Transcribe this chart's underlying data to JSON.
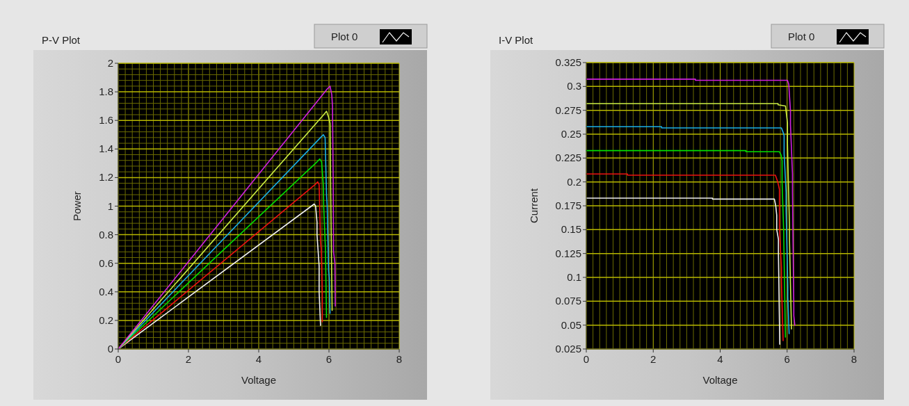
{
  "chart_data": [
    {
      "type": "line",
      "title": "P-V Plot",
      "xlabel": "Voltage",
      "ylabel": "Power",
      "xlim": [
        0,
        8
      ],
      "ylim": [
        0,
        2
      ],
      "grid": true,
      "legend": "top right",
      "line_style": "solid",
      "marker": "none",
      "xticks": [
        0,
        {
          "value": 0.2,
          "label": null
        },
        {
          "value": 0.4,
          "label": null
        },
        {
          "value": 0.6,
          "label": null
        },
        {
          "value": 0.8,
          "label": null
        },
        {
          "value": 1,
          "label": null
        },
        {
          "value": 1.2,
          "label": null
        },
        {
          "value": 1.4,
          "label": null
        },
        {
          "value": 1.6,
          "label": null
        },
        {
          "value": 1.8,
          "label": null
        },
        2,
        {
          "value": 2.2,
          "label": null
        },
        {
          "value": 2.4,
          "label": null
        },
        {
          "value": 2.6,
          "label": null
        },
        {
          "value": 2.8,
          "label": null
        },
        {
          "value": 3,
          "label": null
        },
        {
          "value": 3.2,
          "label": null
        },
        {
          "value": 3.4,
          "label": null
        },
        {
          "value": 3.6,
          "label": null
        },
        {
          "value": 3.8,
          "label": null
        },
        4,
        {
          "value": 4.2,
          "label": null
        },
        {
          "value": 4.4,
          "label": null
        },
        {
          "value": 4.6,
          "label": null
        },
        {
          "value": 4.8,
          "label": null
        },
        {
          "value": 5,
          "label": null
        },
        {
          "value": 5.2,
          "label": null
        },
        {
          "value": 5.4,
          "label": null
        },
        {
          "value": 5.6,
          "label": null
        },
        {
          "value": 5.8,
          "label": null
        },
        6,
        {
          "value": 6.2,
          "label": null
        },
        {
          "value": 6.4,
          "label": null
        },
        {
          "value": 6.6,
          "label": null
        },
        {
          "value": 6.8,
          "label": null
        },
        {
          "value": 7,
          "label": null
        },
        {
          "value": 7.2,
          "label": null
        },
        {
          "value": 7.4,
          "label": null
        },
        {
          "value": 7.6,
          "label": null
        },
        {
          "value": 7.8,
          "label": null
        },
        8
      ],
      "yticks": [
        0,
        {
          "value": 0.04,
          "label": null
        },
        {
          "value": 0.08,
          "label": null
        },
        {
          "value": 0.12,
          "label": null
        },
        {
          "value": 0.16,
          "label": null
        },
        0.2,
        {
          "value": 0.24,
          "label": null
        },
        {
          "value": 0.28,
          "label": null
        },
        {
          "value": 0.32,
          "label": null
        },
        {
          "value": 0.36,
          "label": null
        },
        0.4,
        {
          "value": 0.44,
          "label": null
        },
        {
          "value": 0.48,
          "label": null
        },
        {
          "value": 0.52,
          "label": null
        },
        {
          "value": 0.56,
          "label": null
        },
        0.6,
        {
          "value": 0.64,
          "label": null
        },
        {
          "value": 0.68,
          "label": null
        },
        {
          "value": 0.72,
          "label": null
        },
        {
          "value": 0.76,
          "label": null
        },
        0.8,
        {
          "value": 0.84,
          "label": null
        },
        {
          "value": 0.88,
          "label": null
        },
        {
          "value": 0.92,
          "label": null
        },
        {
          "value": 0.96,
          "label": null
        },
        1,
        {
          "value": 1.04,
          "label": null
        },
        {
          "value": 1.08,
          "label": null
        },
        {
          "value": 1.12,
          "label": null
        },
        {
          "value": 1.16,
          "label": null
        },
        1.2,
        {
          "value": 1.24,
          "label": null
        },
        {
          "value": 1.28,
          "label": null
        },
        {
          "value": 1.32,
          "label": null
        },
        {
          "value": 1.36,
          "label": null
        },
        1.4,
        {
          "value": 1.44,
          "label": null
        },
        {
          "value": 1.48,
          "label": null
        },
        {
          "value": 1.52,
          "label": null
        },
        {
          "value": 1.56,
          "label": null
        },
        1.6,
        {
          "value": 1.64,
          "label": null
        },
        {
          "value": 1.68,
          "label": null
        },
        {
          "value": 1.72,
          "label": null
        },
        {
          "value": 1.76,
          "label": null
        },
        1.8,
        {
          "value": 1.84,
          "label": null
        },
        {
          "value": 1.88,
          "label": null
        },
        {
          "value": 1.92,
          "label": null
        },
        {
          "value": 1.96,
          "label": null
        },
        2
      ],
      "series": [
        {
          "name": "Plot 0",
          "color": "#f0f0f0",
          "x": [
            0,
            5.5,
            5.58,
            5.62,
            5.66,
            5.66,
            5.72,
            5.72,
            5.76
          ],
          "values": [
            0,
            1.0,
            1.015,
            1.0,
            0.886,
            0.8,
            0.58,
            0.4,
            0.165
          ]
        },
        {
          "color": "#ee1111",
          "x": [
            0,
            5.6,
            5.68,
            5.72,
            5.76,
            5.78,
            5.81,
            5.81
          ],
          "values": [
            0,
            1.15,
            1.17,
            1.15,
            0.756,
            0.7,
            0.4,
            0.19
          ]
        },
        {
          "color": "#00e000",
          "x": [
            0,
            5.66,
            5.74,
            5.79,
            5.84,
            5.85,
            5.89,
            5.9,
            5.93
          ],
          "values": [
            0,
            1.31,
            1.33,
            1.31,
            1.145,
            1.0,
            0.756,
            0.7,
            0.22
          ]
        },
        {
          "color": "#1ab0e8",
          "x": [
            0,
            5.76,
            5.84,
            5.89,
            5.93,
            5.95,
            5.99,
            6.01,
            6.03
          ],
          "values": [
            0,
            1.48,
            1.5,
            1.48,
            1.08,
            1.0,
            0.545,
            0.5,
            0.25
          ]
        },
        {
          "color": "#ccee44",
          "x": [
            0,
            5.85,
            5.93,
            5.98,
            6.03,
            6.05,
            6.09
          ],
          "values": [
            0,
            1.64,
            1.664,
            1.63,
            1.58,
            1.08,
            0.27
          ]
        },
        {
          "color": "#d020e0",
          "x": [
            0,
            5.95,
            6.03,
            6.08,
            6.1,
            6.12,
            6.13,
            6.17,
            6.18
          ],
          "values": [
            0,
            1.82,
            1.84,
            1.78,
            1.7,
            1.2,
            0.68,
            0.6,
            0.3
          ]
        }
      ]
    },
    {
      "type": "line",
      "title": "I-V Plot",
      "xlabel": "Voltage",
      "ylabel": "Current",
      "xlim": [
        0,
        8
      ],
      "ylim": [
        0.025,
        0.325
      ],
      "grid": true,
      "legend": "top right",
      "line_style": "solid",
      "marker": "none",
      "xticks": [
        0,
        {
          "value": 0.2,
          "label": null
        },
        {
          "value": 0.4,
          "label": null
        },
        {
          "value": 0.6,
          "label": null
        },
        {
          "value": 0.8,
          "label": null
        },
        {
          "value": 1,
          "label": null
        },
        {
          "value": 1.2,
          "label": null
        },
        {
          "value": 1.4,
          "label": null
        },
        {
          "value": 1.6,
          "label": null
        },
        {
          "value": 1.8,
          "label": null
        },
        2,
        {
          "value": 2.2,
          "label": null
        },
        {
          "value": 2.4,
          "label": null
        },
        {
          "value": 2.6,
          "label": null
        },
        {
          "value": 2.8,
          "label": null
        },
        {
          "value": 3,
          "label": null
        },
        {
          "value": 3.2,
          "label": null
        },
        {
          "value": 3.4,
          "label": null
        },
        {
          "value": 3.6,
          "label": null
        },
        {
          "value": 3.8,
          "label": null
        },
        4,
        {
          "value": 4.2,
          "label": null
        },
        {
          "value": 4.4,
          "label": null
        },
        {
          "value": 4.6,
          "label": null
        },
        {
          "value": 4.8,
          "label": null
        },
        {
          "value": 5,
          "label": null
        },
        {
          "value": 5.2,
          "label": null
        },
        {
          "value": 5.4,
          "label": null
        },
        {
          "value": 5.6,
          "label": null
        },
        {
          "value": 5.8,
          "label": null
        },
        6,
        {
          "value": 6.2,
          "label": null
        },
        {
          "value": 6.4,
          "label": null
        },
        {
          "value": 6.6,
          "label": null
        },
        {
          "value": 6.8,
          "label": null
        },
        {
          "value": 7,
          "label": null
        },
        {
          "value": 7.2,
          "label": null
        },
        {
          "value": 7.4,
          "label": null
        },
        {
          "value": 7.6,
          "label": null
        },
        {
          "value": 7.8,
          "label": null
        },
        8
      ],
      "yticks": [
        0.025,
        0.05,
        0.075,
        0.1,
        0.125,
        0.15,
        0.175,
        0.2,
        0.225,
        0.25,
        0.275,
        0.3,
        0.325
      ],
      "series": [
        {
          "name": "Plot 0",
          "color": "#f0f0f0",
          "x": [
            0,
            3.77,
            3.77,
            5.62,
            5.66,
            5.69,
            5.69,
            5.74,
            5.74,
            5.78
          ],
          "values": [
            0.183,
            0.183,
            0.182,
            0.182,
            0.175,
            0.165,
            0.15,
            0.14,
            0.125,
            0.03
          ]
        },
        {
          "color": "#ee1111",
          "x": [
            0,
            1.23,
            1.23,
            5.65,
            5.72,
            5.77,
            5.77,
            5.83,
            5.83,
            5.88
          ],
          "values": [
            0.2083,
            0.2083,
            0.207,
            0.207,
            0.2,
            0.192,
            0.15,
            0.11,
            0.0957,
            0.0337
          ]
        },
        {
          "color": "#00e000",
          "x": [
            0,
            4.77,
            4.77,
            5.77,
            5.82,
            5.85,
            5.85,
            5.9,
            5.9,
            5.95
          ],
          "values": [
            0.2328,
            0.2328,
            0.2316,
            0.2316,
            0.228,
            0.222,
            0.2,
            0.145,
            0.14,
            0.0374
          ]
        },
        {
          "color": "#1ab0e8",
          "x": [
            0,
            2.25,
            2.25,
            5.83,
            5.88,
            5.91,
            5.91,
            5.97,
            5.97,
            6.02,
            6.02,
            6.06
          ],
          "values": [
            0.2578,
            0.2578,
            0.2565,
            0.2565,
            0.252,
            0.2486,
            0.23,
            0.189,
            0.17,
            0.0898,
            0.08,
            0.041
          ]
        },
        {
          "color": "#ccee44",
          "x": [
            0,
            5.73,
            5.73,
            5.95,
            6.01,
            6.01,
            6.07,
            6.07,
            6.13
          ],
          "values": [
            0.282,
            0.282,
            0.2808,
            0.2795,
            0.262,
            0.24,
            0.155,
            0.14,
            0.046
          ]
        },
        {
          "color": "#d020e0",
          "x": [
            0,
            3.26,
            3.26,
            6.01,
            6.05,
            6.1,
            6.1,
            6.16,
            6.16,
            6.2,
            6.2,
            6.23
          ],
          "values": [
            0.3076,
            0.3076,
            0.3064,
            0.3064,
            0.302,
            0.274,
            0.26,
            0.2085,
            0.19,
            0.07,
            0.06,
            0.0498
          ]
        }
      ]
    }
  ]
}
